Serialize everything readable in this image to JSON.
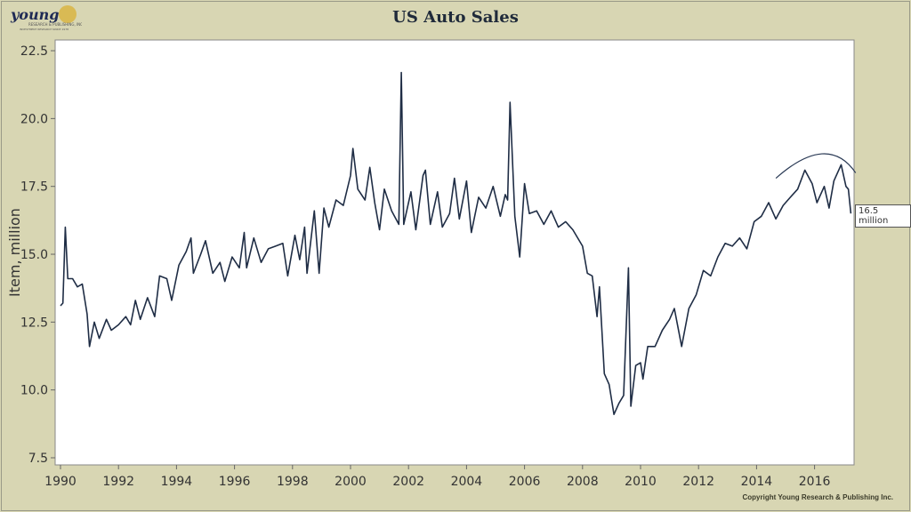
{
  "header": {
    "title": "US Auto Sales",
    "logo_text": "young Research & Publishing, Inc. Investment research since 1978"
  },
  "footer": {
    "copyright": "Copyright Young Research & Publishing Inc."
  },
  "chart_data": {
    "type": "line",
    "title": "US Auto Sales",
    "xlabel": "",
    "ylabel": "Item, million",
    "ylim": [
      7.5,
      22.5
    ],
    "xlim": [
      "1990-01",
      "2017-04"
    ],
    "yticks": [
      "7.5",
      "10.0",
      "12.5",
      "15.0",
      "17.5",
      "20.0",
      "22.5"
    ],
    "xticks": [
      "1990",
      "1992",
      "1994",
      "1996",
      "1998",
      "2000",
      "2002",
      "2004",
      "2006",
      "2008",
      "2010",
      "2012",
      "2014",
      "2016"
    ],
    "grid": false,
    "line_color": "#1f2d45",
    "annotation": {
      "label": "16.5 million",
      "date": "2017-04",
      "value": 16.5
    },
    "trend_arc": [
      [
        "2014-09",
        17.8
      ],
      [
        "2016-04",
        18.7
      ],
      [
        "2017-06",
        18.0
      ]
    ],
    "series": [
      {
        "points": [
          [
            "1990-01",
            13.1
          ],
          [
            "1990-02",
            13.2
          ],
          [
            "1990-03",
            16.0
          ],
          [
            "1990-04",
            14.1
          ],
          [
            "1990-06",
            14.1
          ],
          [
            "1990-08",
            13.8
          ],
          [
            "1990-10",
            13.9
          ],
          [
            "1990-12",
            12.8
          ],
          [
            "1991-01",
            11.6
          ],
          [
            "1991-03",
            12.5
          ],
          [
            "1991-05",
            11.9
          ],
          [
            "1991-08",
            12.6
          ],
          [
            "1991-10",
            12.2
          ],
          [
            "1992-01",
            12.4
          ],
          [
            "1992-04",
            12.7
          ],
          [
            "1992-06",
            12.4
          ],
          [
            "1992-08",
            13.3
          ],
          [
            "1992-10",
            12.6
          ],
          [
            "1993-01",
            13.4
          ],
          [
            "1993-04",
            12.7
          ],
          [
            "1993-06",
            14.2
          ],
          [
            "1993-09",
            14.1
          ],
          [
            "1993-11",
            13.3
          ],
          [
            "1994-02",
            14.6
          ],
          [
            "1994-05",
            15.1
          ],
          [
            "1994-07",
            15.6
          ],
          [
            "1994-08",
            14.3
          ],
          [
            "1994-11",
            15.0
          ],
          [
            "1995-01",
            15.5
          ],
          [
            "1995-04",
            14.3
          ],
          [
            "1995-07",
            14.7
          ],
          [
            "1995-09",
            14.0
          ],
          [
            "1995-12",
            14.9
          ],
          [
            "1996-03",
            14.5
          ],
          [
            "1996-05",
            15.8
          ],
          [
            "1996-06",
            14.5
          ],
          [
            "1996-09",
            15.6
          ],
          [
            "1996-12",
            14.7
          ],
          [
            "1997-03",
            15.2
          ],
          [
            "1997-06",
            15.3
          ],
          [
            "1997-09",
            15.4
          ],
          [
            "1997-11",
            14.2
          ],
          [
            "1998-02",
            15.7
          ],
          [
            "1998-04",
            14.8
          ],
          [
            "1998-06",
            16.0
          ],
          [
            "1998-07",
            14.3
          ],
          [
            "1998-10",
            16.6
          ],
          [
            "1998-12",
            14.3
          ],
          [
            "1999-02",
            16.7
          ],
          [
            "1999-04",
            16.0
          ],
          [
            "1999-07",
            17.0
          ],
          [
            "1999-10",
            16.8
          ],
          [
            "2000-01",
            17.9
          ],
          [
            "2000-02",
            18.9
          ],
          [
            "2000-04",
            17.4
          ],
          [
            "2000-07",
            17.0
          ],
          [
            "2000-09",
            18.2
          ],
          [
            "2000-11",
            16.9
          ],
          [
            "2001-01",
            15.9
          ],
          [
            "2001-03",
            17.4
          ],
          [
            "2001-06",
            16.6
          ],
          [
            "2001-09",
            16.1
          ],
          [
            "2001-10",
            21.7
          ],
          [
            "2001-11",
            16.1
          ],
          [
            "2002-02",
            17.3
          ],
          [
            "2002-04",
            15.9
          ],
          [
            "2002-07",
            17.9
          ],
          [
            "2002-08",
            18.1
          ],
          [
            "2002-10",
            16.1
          ],
          [
            "2003-01",
            17.3
          ],
          [
            "2003-03",
            16.0
          ],
          [
            "2003-06",
            16.5
          ],
          [
            "2003-08",
            17.8
          ],
          [
            "2003-10",
            16.3
          ],
          [
            "2004-01",
            17.7
          ],
          [
            "2004-03",
            15.8
          ],
          [
            "2004-06",
            17.1
          ],
          [
            "2004-09",
            16.7
          ],
          [
            "2004-12",
            17.5
          ],
          [
            "2005-03",
            16.4
          ],
          [
            "2005-05",
            17.2
          ],
          [
            "2005-06",
            17.0
          ],
          [
            "2005-07",
            20.6
          ],
          [
            "2005-09",
            16.4
          ],
          [
            "2005-11",
            14.9
          ],
          [
            "2006-01",
            17.6
          ],
          [
            "2006-03",
            16.5
          ],
          [
            "2006-06",
            16.6
          ],
          [
            "2006-09",
            16.1
          ],
          [
            "2006-12",
            16.6
          ],
          [
            "2007-03",
            16.0
          ],
          [
            "2007-06",
            16.2
          ],
          [
            "2007-09",
            15.9
          ],
          [
            "2008-01",
            15.3
          ],
          [
            "2008-03",
            14.3
          ],
          [
            "2008-05",
            14.2
          ],
          [
            "2008-07",
            12.7
          ],
          [
            "2008-08",
            13.8
          ],
          [
            "2008-10",
            10.6
          ],
          [
            "2008-12",
            10.2
          ],
          [
            "2009-02",
            9.1
          ],
          [
            "2009-04",
            9.5
          ],
          [
            "2009-06",
            9.8
          ],
          [
            "2009-08",
            14.5
          ],
          [
            "2009-09",
            9.4
          ],
          [
            "2009-11",
            10.9
          ],
          [
            "2010-01",
            11.0
          ],
          [
            "2010-02",
            10.4
          ],
          [
            "2010-04",
            11.6
          ],
          [
            "2010-07",
            11.6
          ],
          [
            "2010-10",
            12.2
          ],
          [
            "2011-01",
            12.6
          ],
          [
            "2011-03",
            13.0
          ],
          [
            "2011-06",
            11.6
          ],
          [
            "2011-09",
            13.0
          ],
          [
            "2011-12",
            13.5
          ],
          [
            "2012-03",
            14.4
          ],
          [
            "2012-06",
            14.2
          ],
          [
            "2012-09",
            14.9
          ],
          [
            "2012-12",
            15.4
          ],
          [
            "2013-03",
            15.3
          ],
          [
            "2013-06",
            15.6
          ],
          [
            "2013-09",
            15.2
          ],
          [
            "2013-12",
            16.2
          ],
          [
            "2014-03",
            16.4
          ],
          [
            "2014-06",
            16.9
          ],
          [
            "2014-09",
            16.3
          ],
          [
            "2014-12",
            16.8
          ],
          [
            "2015-03",
            17.1
          ],
          [
            "2015-06",
            17.4
          ],
          [
            "2015-09",
            18.1
          ],
          [
            "2015-12",
            17.6
          ],
          [
            "2016-02",
            16.9
          ],
          [
            "2016-05",
            17.5
          ],
          [
            "2016-07",
            16.7
          ],
          [
            "2016-09",
            17.7
          ],
          [
            "2016-12",
            18.3
          ],
          [
            "2017-02",
            17.5
          ],
          [
            "2017-03",
            17.4
          ],
          [
            "2017-04",
            16.5
          ]
        ]
      }
    ]
  }
}
